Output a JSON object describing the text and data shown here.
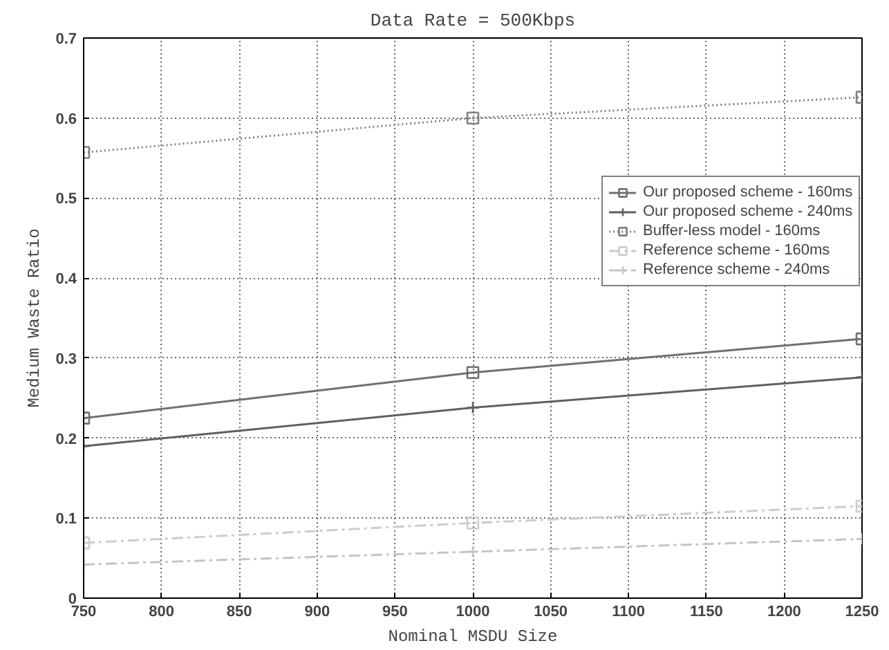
{
  "chart_data": {
    "type": "line",
    "title": "Data Rate = 500Kbps",
    "xlabel": "Nominal MSDU Size",
    "ylabel": "Medium Waste Ratio",
    "x": [
      750,
      1000,
      1250
    ],
    "series": [
      {
        "name": "Our proposed scheme - 160ms",
        "color": "#707070",
        "values": [
          0.225,
          0.282,
          0.324
        ],
        "marker": "square",
        "line_style": "solid"
      },
      {
        "name": "Our proposed scheme - 240ms",
        "color": "#606060",
        "values": [
          0.19,
          0.238,
          0.276
        ],
        "marker": "cross",
        "line_style": "solid"
      },
      {
        "name": "Buffer-less model - 160ms",
        "color": "#808080",
        "values": [
          0.557,
          0.6,
          0.626
        ],
        "marker": "square",
        "line_style": "dotted"
      },
      {
        "name": "Reference scheme - 160ms",
        "color": "#cccccc",
        "values": [
          0.069,
          0.094,
          0.115
        ],
        "marker": "square",
        "line_style": "dashed"
      },
      {
        "name": "Reference scheme - 240ms",
        "color": "#c4c4c4",
        "values": [
          0.042,
          0.058,
          0.074
        ],
        "marker": "cross",
        "line_style": "dashed"
      }
    ],
    "xlim": [
      750,
      1250
    ],
    "xticks": [
      750,
      800,
      850,
      900,
      950,
      1000,
      1050,
      1100,
      1150,
      1200,
      1250
    ],
    "ylim": [
      0,
      0.7
    ],
    "yticks": [
      0,
      0.1,
      0.2,
      0.3,
      0.4,
      0.5,
      0.6,
      0.7
    ],
    "grid": true,
    "legend": "right"
  }
}
